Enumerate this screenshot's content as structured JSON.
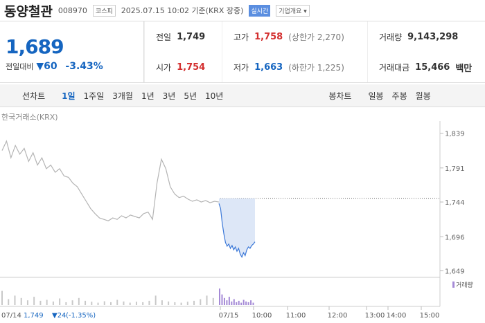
{
  "header": {
    "name": "동양철관",
    "code": "008970",
    "market": "코스피",
    "timestamp": "2025.07.15 10:02 기준(KRX 장중)",
    "realtime": "실시간",
    "company_info": "기업개요"
  },
  "quote": {
    "price": "1,689",
    "change_label": "전일대비",
    "change": "▼60",
    "change_pct": "-3.43%",
    "stats": [
      {
        "label": "전일",
        "value": "1,749"
      },
      {
        "label": "고가",
        "value": "1,758",
        "note": "(상한가 2,270)"
      },
      {
        "label": "거래량",
        "value": "9,143,298"
      },
      {
        "label": "시가",
        "value": "1,754"
      },
      {
        "label": "저가",
        "value": "1,663",
        "note": "(하한가 1,225)"
      },
      {
        "label": "거래대금",
        "value": "15,466",
        "unit": "백만"
      }
    ]
  },
  "tabs": {
    "line_label": "선차트",
    "line": [
      "1일",
      "1주일",
      "3개월",
      "1년",
      "3년",
      "5년",
      "10년"
    ],
    "candle_label": "봉차트",
    "candle": [
      "일봉",
      "주봉",
      "월봉"
    ]
  },
  "chart_data": {
    "type": "line",
    "source": "한국거래소(KRX)",
    "ylim": [
      1640,
      1850
    ],
    "yticks": [
      {
        "value": 1839,
        "label": "1,839"
      },
      {
        "value": 1791,
        "label": "1,791"
      },
      {
        "value": 1744,
        "label": "1,744"
      },
      {
        "value": 1696,
        "label": "1,696"
      },
      {
        "value": 1649,
        "label": "1,649"
      }
    ],
    "reference": 1749,
    "series": [
      {
        "color": "#b4b4b4",
        "values": [
          1815,
          1828,
          1805,
          1822,
          1810,
          1818,
          1800,
          1812,
          1795,
          1805,
          1790,
          1795,
          1785,
          1790,
          1780,
          1778,
          1770,
          1765,
          1755,
          1745,
          1735,
          1728,
          1722,
          1720,
          1718,
          1722,
          1720,
          1725,
          1722,
          1726,
          1724,
          1722,
          1728,
          1730,
          1720,
          1770,
          1803,
          1790,
          1765,
          1755,
          1750,
          1752,
          1748,
          1745,
          1747,
          1744,
          1746,
          1743,
          1745,
          1744
        ]
      },
      {
        "color": "#3b78d8",
        "area": "#dde7f7",
        "values": [
          1742,
          1735,
          1715,
          1700,
          1688,
          1683,
          1686,
          1680,
          1684,
          1678,
          1682,
          1676,
          1680,
          1672,
          1668,
          1674,
          1670,
          1678,
          1682,
          1680,
          1684,
          1686,
          1689
        ]
      }
    ],
    "volume": {
      "name": "거래량",
      "ylim": [
        0,
        100
      ],
      "color": "#c8c8c8",
      "today_color": "#a58ad6",
      "values": [
        60,
        25,
        40,
        30,
        20,
        35,
        18,
        22,
        15,
        28,
        12,
        20,
        30,
        18,
        14,
        10,
        16,
        12,
        22,
        15,
        10,
        14,
        12,
        18,
        40,
        20,
        15,
        12,
        10,
        14,
        18,
        25,
        40,
        30
      ],
      "today": [
        70,
        45,
        30,
        20,
        35,
        15,
        25,
        12,
        18,
        10,
        22,
        15,
        12,
        20,
        10
      ]
    },
    "x_labels": [
      "07/15",
      "10:00",
      "11:00",
      "12:00",
      "13:00",
      "14:00",
      "15:00"
    ],
    "prev_day": {
      "date": "07/14",
      "close": "1,749",
      "change": "▼24",
      "change_pct": "(-1.35%)"
    }
  }
}
